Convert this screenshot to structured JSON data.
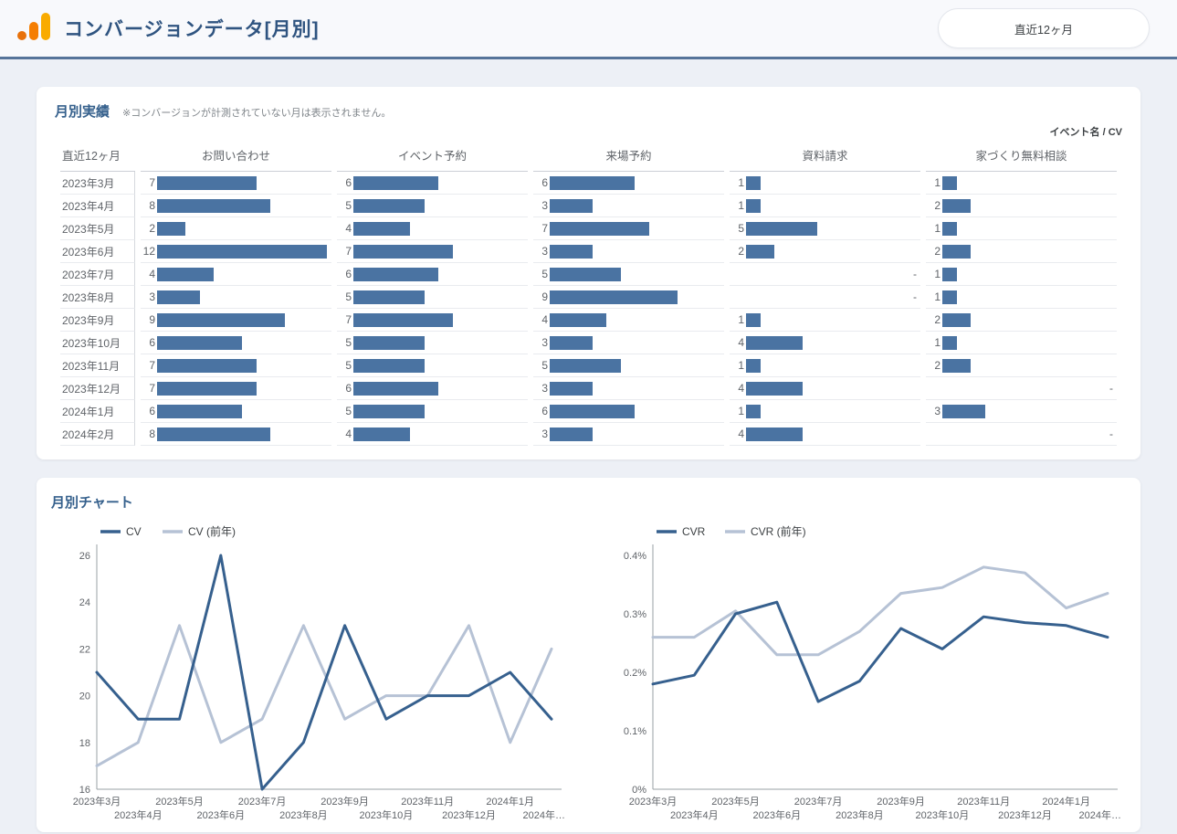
{
  "header": {
    "title": "コンバージョンデータ[月別]",
    "date_range_label": "直近12ヶ月"
  },
  "colors": {
    "bar": "#4a73a2",
    "series_current": "#36608e",
    "series_previous": "#b6c2d5",
    "logo_dot": "#e8710a",
    "logo_bar_mid": "#f57e02",
    "logo_bar_tall": "#f9ab00"
  },
  "monthly_results": {
    "title": "月別実績",
    "note": "※コンバージョンが計測されていない月は表示されません。",
    "corner_label": "イベント名 / CV",
    "first_column_header": "直近12ヶ月",
    "columns": [
      "お問い合わせ",
      "イベント予約",
      "来場予約",
      "資料請求",
      "家づくり無料相談"
    ],
    "empty_value": "-",
    "bar_scale_max": 12,
    "rows": [
      {
        "month": "2023年3月",
        "values": [
          7,
          6,
          6,
          1,
          1
        ]
      },
      {
        "month": "2023年4月",
        "values": [
          8,
          5,
          3,
          1,
          2
        ]
      },
      {
        "month": "2023年5月",
        "values": [
          2,
          4,
          7,
          5,
          1
        ]
      },
      {
        "month": "2023年6月",
        "values": [
          12,
          7,
          3,
          2,
          2
        ]
      },
      {
        "month": "2023年7月",
        "values": [
          4,
          6,
          5,
          null,
          1
        ]
      },
      {
        "month": "2023年8月",
        "values": [
          3,
          5,
          9,
          null,
          1
        ]
      },
      {
        "month": "2023年9月",
        "values": [
          9,
          7,
          4,
          1,
          2
        ]
      },
      {
        "month": "2023年10月",
        "values": [
          6,
          5,
          3,
          4,
          1
        ]
      },
      {
        "month": "2023年11月",
        "values": [
          7,
          5,
          5,
          1,
          2
        ]
      },
      {
        "month": "2023年12月",
        "values": [
          7,
          6,
          3,
          4,
          null
        ]
      },
      {
        "month": "2024年1月",
        "values": [
          6,
          5,
          6,
          1,
          3
        ]
      },
      {
        "month": "2024年2月",
        "values": [
          8,
          4,
          3,
          4,
          null
        ]
      }
    ]
  },
  "monthly_chart": {
    "title": "月別チャート"
  },
  "chart_data": [
    {
      "type": "line",
      "x_labels": [
        "2023年3月",
        "2023年4月",
        "2023年5月",
        "2023年6月",
        "2023年7月",
        "2023年8月",
        "2023年9月",
        "2023年10月",
        "2023年11月",
        "2023年12月",
        "2024年1月",
        "2024年…"
      ],
      "series": [
        {
          "name": "CV",
          "values": [
            21,
            19,
            19,
            26,
            16,
            18,
            23,
            19,
            20,
            20,
            21,
            19
          ]
        },
        {
          "name": "CV (前年)",
          "values": [
            17,
            18,
            23,
            18,
            19,
            23,
            19,
            20,
            20,
            23,
            18,
            22
          ]
        }
      ],
      "ylim": [
        16,
        26
      ],
      "yticks": [
        {
          "v": 16,
          "label": "16"
        },
        {
          "v": 18,
          "label": "18"
        },
        {
          "v": 20,
          "label": "20"
        },
        {
          "v": 22,
          "label": "22"
        },
        {
          "v": 24,
          "label": "24"
        },
        {
          "v": 26,
          "label": "26"
        }
      ],
      "legend_position": "top-left",
      "grid": false
    },
    {
      "type": "line",
      "x_labels": [
        "2023年3月",
        "2023年4月",
        "2023年5月",
        "2023年6月",
        "2023年7月",
        "2023年8月",
        "2023年9月",
        "2023年10月",
        "2023年11月",
        "2023年12月",
        "2024年1月",
        "2024年…"
      ],
      "series": [
        {
          "name": "CVR",
          "values": [
            0.18,
            0.195,
            0.3,
            0.32,
            0.15,
            0.185,
            0.275,
            0.24,
            0.295,
            0.285,
            0.28,
            0.26
          ]
        },
        {
          "name": "CVR (前年)",
          "values": [
            0.26,
            0.26,
            0.305,
            0.23,
            0.23,
            0.27,
            0.335,
            0.345,
            0.38,
            0.37,
            0.31,
            0.335
          ]
        }
      ],
      "ylim": [
        0,
        0.4
      ],
      "yticks": [
        {
          "v": 0,
          "label": "0%"
        },
        {
          "v": 0.1,
          "label": "0.1%"
        },
        {
          "v": 0.2,
          "label": "0.2%"
        },
        {
          "v": 0.3,
          "label": "0.3%"
        },
        {
          "v": 0.4,
          "label": "0.4%"
        }
      ],
      "legend_position": "top-left",
      "grid": false
    }
  ]
}
